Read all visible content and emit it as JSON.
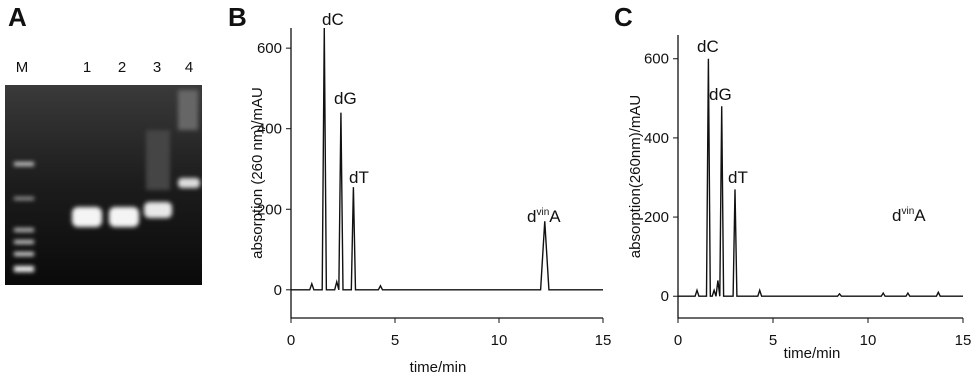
{
  "gel": {
    "label": "A",
    "lanes": [
      "M",
      "1",
      "2",
      "3",
      "4"
    ]
  },
  "chart_data": [
    {
      "type": "line",
      "label": "B",
      "xlabel": "time/min",
      "ylabel": "absorption (260 nm)/mAU",
      "x": [
        0,
        0.9,
        1.0,
        1.1,
        1.5,
        1.6,
        1.7,
        2.1,
        2.2,
        2.3,
        2.4,
        2.5,
        2.9,
        3.0,
        3.1,
        4.2,
        4.3,
        4.4,
        12.0,
        12.2,
        12.4,
        15
      ],
      "values": [
        0,
        0,
        15,
        0,
        0,
        650,
        0,
        0,
        20,
        0,
        440,
        0,
        0,
        255,
        0,
        0,
        10,
        0,
        0,
        170,
        0,
        0
      ],
      "color": "#111111",
      "xlim": [
        0,
        15
      ],
      "xticks": [
        0,
        5,
        10,
        15
      ],
      "ylim": [
        -70,
        650
      ],
      "yticks": [
        0,
        200,
        400,
        600
      ],
      "annotations": [
        {
          "base": "dC"
        },
        {
          "base": "dG"
        },
        {
          "base": "dT"
        },
        {
          "base": "d",
          "sup": "vin",
          "tail": "A"
        }
      ]
    },
    {
      "type": "line",
      "label": "C",
      "xlabel": "time/min",
      "ylabel": "absorption(260nm)/mAU",
      "x": [
        0,
        0.9,
        1.0,
        1.1,
        1.5,
        1.6,
        1.7,
        1.8,
        1.9,
        2.0,
        2.1,
        2.2,
        2.3,
        2.4,
        2.9,
        3.0,
        3.1,
        4.2,
        4.3,
        4.4,
        8.4,
        8.5,
        8.6,
        10.7,
        10.8,
        10.9,
        12.0,
        12.1,
        12.2,
        13.6,
        13.7,
        13.8,
        15
      ],
      "values": [
        0,
        0,
        15,
        0,
        0,
        600,
        0,
        0,
        15,
        0,
        40,
        0,
        480,
        0,
        0,
        270,
        0,
        0,
        15,
        0,
        0,
        6,
        0,
        0,
        8,
        0,
        0,
        8,
        0,
        0,
        10,
        0,
        0
      ],
      "color": "#111111",
      "xlim": [
        0,
        15
      ],
      "xticks": [
        0,
        5,
        10,
        15
      ],
      "ylim": [
        -55,
        660
      ],
      "yticks": [
        0,
        200,
        400,
        600
      ],
      "annotations": [
        {
          "base": "dC"
        },
        {
          "base": "dG"
        },
        {
          "base": "dT"
        },
        {
          "base": "d",
          "sup": "vin",
          "tail": "A"
        }
      ]
    }
  ]
}
